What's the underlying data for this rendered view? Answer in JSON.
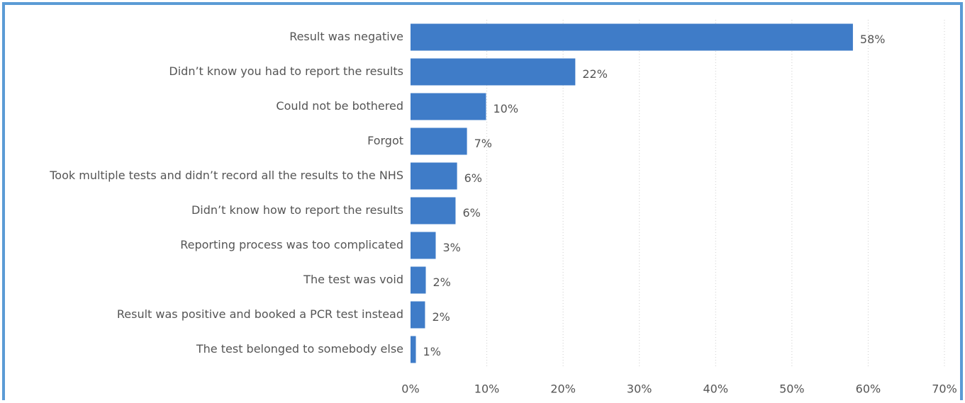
{
  "chart_data": {
    "type": "bar",
    "orientation": "horizontal",
    "categories": [
      "Result was negative",
      "Didn’t know you had to report the results",
      "Could not be bothered",
      "Forgot",
      "Took multiple tests and didn’t record all the results to the NHS",
      "Didn’t know how to report the results",
      "Reporting process was too complicated",
      "The test was void",
      "Result was positive and booked a PCR test instead",
      "The test belonged to somebody else"
    ],
    "values": [
      58,
      21.6,
      9.9,
      7.4,
      6.1,
      5.9,
      3.3,
      2.0,
      1.9,
      0.7
    ],
    "value_labels": [
      "58%",
      "22%",
      "10%",
      "7%",
      "6%",
      "6%",
      "3%",
      "2%",
      "2%",
      "1%"
    ],
    "color": "#3f7cc8",
    "xlim": [
      0,
      70
    ],
    "xticks": [
      {
        "value": 0,
        "label": "0%"
      },
      {
        "value": 10,
        "label": "10%"
      },
      {
        "value": 20,
        "label": "20%"
      },
      {
        "value": 30,
        "label": "30%"
      },
      {
        "value": 40,
        "label": "40%"
      },
      {
        "value": 50,
        "label": "50%"
      },
      {
        "value": 60,
        "label": "60%"
      },
      {
        "value": 70,
        "label": "70%"
      }
    ],
    "grid": true
  }
}
